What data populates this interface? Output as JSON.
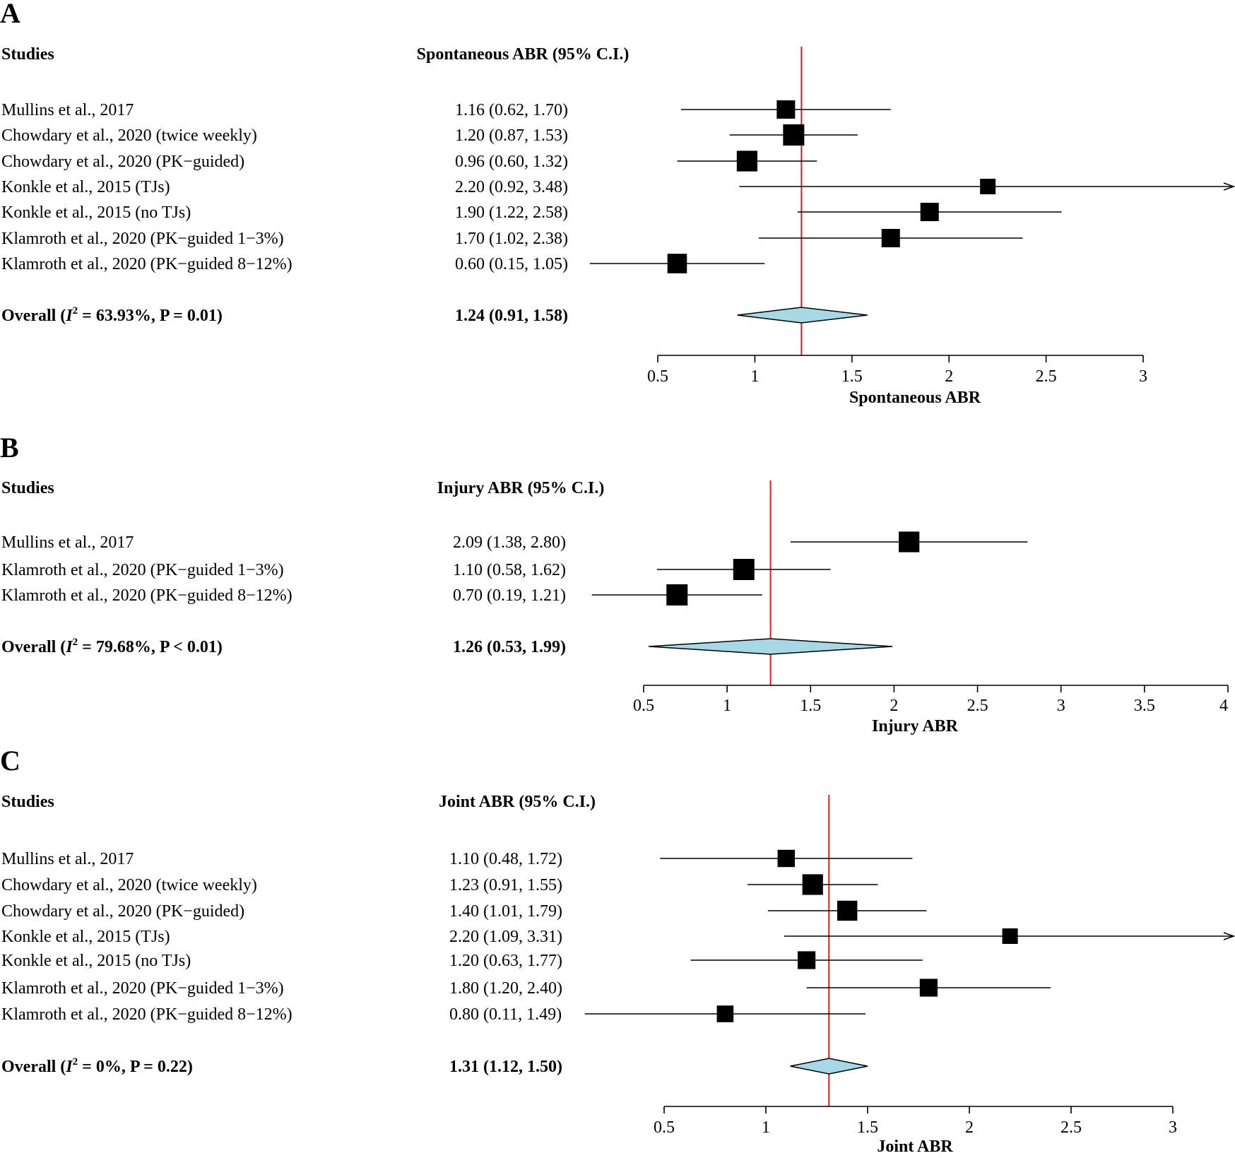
{
  "colors": {
    "reference_line": "#e41a1c",
    "diamond_fill": "#a6d8e6",
    "marker": "#000000"
  },
  "chart_data": [
    {
      "type": "forest",
      "panel_label": "A",
      "studies_header": "Studies",
      "estimate_header": "Spontaneous ABR (95% C.I.)",
      "xlabel": "Spontaneous ABR",
      "xlim": [
        0.5,
        3
      ],
      "xticks": [
        0.5,
        1,
        1.5,
        2,
        2.5,
        3
      ],
      "xtick_labels": [
        "0.5",
        "1",
        "1.5",
        "2",
        "2.5",
        "3"
      ],
      "reference_value": 1.24,
      "studies": [
        {
          "name": "Mullins et al., 2017",
          "text": "1.16 (0.62, 1.70)",
          "est": 1.16,
          "lo": 0.62,
          "hi": 1.7,
          "weight": 0.75
        },
        {
          "name": "Chowdary et al., 2020 (twice weekly)",
          "text": "1.20 (0.87, 1.53)",
          "est": 1.2,
          "lo": 0.87,
          "hi": 1.53,
          "weight": 1.0
        },
        {
          "name": "Chowdary  et  al.,  2020  (PK−guided)",
          "text": "0.96 (0.60, 1.32)",
          "est": 0.96,
          "lo": 0.6,
          "hi": 1.32,
          "weight": 0.95
        },
        {
          "name": "Konkle et al., 2015 (TJs)",
          "text": "2.20 (0.92, 3.48)",
          "est": 2.2,
          "lo": 0.92,
          "hi": 3.48,
          "weight": 0.5
        },
        {
          "name": "Konkle et al., 2015 (no TJs)",
          "text": "1.90 (1.22, 2.58)",
          "est": 1.9,
          "lo": 1.22,
          "hi": 2.58,
          "weight": 0.75
        },
        {
          "name": "Klamroth et al., 2020 (PK−guided 1−3%)",
          "text": "1.70 (1.02, 2.38)",
          "est": 1.7,
          "lo": 1.02,
          "hi": 2.38,
          "weight": 0.75
        },
        {
          "name": "Klamroth et al., 2020 (PK−guided 8−12%)",
          "text": "0.60 (0.15, 1.05)",
          "est": 0.6,
          "lo": 0.15,
          "hi": 1.05,
          "weight": 0.85
        }
      ],
      "overall": {
        "label_prefix": "Overall (",
        "i2": "I",
        "sup": "2",
        "label_suffix": " = 63.93%, P = 0.01)",
        "text": "1.24 (0.91, 1.58)",
        "est": 1.24,
        "lo": 0.91,
        "hi": 1.58
      }
    },
    {
      "type": "forest",
      "panel_label": "B",
      "studies_header": "Studies",
      "estimate_header": "Injury ABR (95% C.I.)",
      "xlabel": "Injury ABR",
      "xlim": [
        0.5,
        4
      ],
      "xticks": [
        0.5,
        1,
        1.5,
        2,
        2.5,
        3,
        3.5,
        4
      ],
      "xtick_labels": [
        "0.5",
        "1",
        "1.5",
        "2",
        "2.5",
        "3",
        "3.5",
        "4"
      ],
      "reference_value": 1.26,
      "studies": [
        {
          "name": "Mullins et al., 2017",
          "text": "2.09 (1.38, 2.80)",
          "est": 2.09,
          "lo": 1.38,
          "hi": 2.8,
          "weight": 0.95
        },
        {
          "name": "Klamroth et al., 2020 (PK−guided 1−3%)",
          "text": "1.10 (0.58, 1.62)",
          "est": 1.1,
          "lo": 0.58,
          "hi": 1.62,
          "weight": 1.0
        },
        {
          "name": "Klamroth et al., 2020 (PK−guided 8−12%)",
          "text": "0.70 (0.19, 1.21)",
          "est": 0.7,
          "lo": 0.19,
          "hi": 1.21,
          "weight": 1.0
        }
      ],
      "overall": {
        "label_prefix": "Overall (",
        "i2": "I",
        "sup": "2",
        "label_suffix": " = 79.68%, P < 0.01)",
        "text": "1.26 (0.53, 1.99)",
        "est": 1.26,
        "lo": 0.53,
        "hi": 1.99
      }
    },
    {
      "type": "forest",
      "panel_label": "C",
      "studies_header": "Studies",
      "estimate_header": "Joint ABR (95% C.I.)",
      "xlabel": "Joint ABR",
      "xlim": [
        0.5,
        3
      ],
      "xticks": [
        0.5,
        1,
        1.5,
        2,
        2.5,
        3
      ],
      "xtick_labels": [
        "0.5",
        "1",
        "1.5",
        "2",
        "2.5",
        "3"
      ],
      "reference_value": 1.31,
      "studies": [
        {
          "name": "Mullins et al., 2017",
          "text": "1.10 (0.48, 1.72)",
          "est": 1.1,
          "lo": 0.48,
          "hi": 1.72,
          "weight": 0.65
        },
        {
          "name": "Chowdary et al., 2020 (twice weekly)",
          "text": "1.23 (0.91, 1.55)",
          "est": 1.23,
          "lo": 0.91,
          "hi": 1.55,
          "weight": 0.95
        },
        {
          "name": "Chowdary et al., 2020 (PK−guided)",
          "text": "1.40 (1.01, 1.79)",
          "est": 1.4,
          "lo": 1.01,
          "hi": 1.79,
          "weight": 0.9
        },
        {
          "name": "Konkle et al., 2015 (TJs)",
          "text": "2.20 (1.09, 3.31)",
          "est": 2.2,
          "lo": 1.09,
          "hi": 3.31,
          "weight": 0.5
        },
        {
          "name": "Konkle et al., 2015 (no TJs)",
          "text": "1.20 (0.63, 1.77)",
          "est": 1.2,
          "lo": 0.63,
          "hi": 1.77,
          "weight": 0.7
        },
        {
          "name": "Klamroth et al., 2020 (PK−guided 1−3%)",
          "text": "1.80 (1.20, 2.40)",
          "est": 1.8,
          "lo": 1.2,
          "hi": 2.4,
          "weight": 0.7
        },
        {
          "name": "Klamroth et al., 2020 (PK−guided 8−12%)",
          "text": "0.80 (0.11, 1.49)",
          "est": 0.8,
          "lo": 0.11,
          "hi": 1.49,
          "weight": 0.6
        }
      ],
      "overall": {
        "label_prefix": "Overall (",
        "i2": "I",
        "sup": "2",
        "label_suffix": " = 0%, P = 0.22)",
        "text": "1.31 (1.12, 1.50)",
        "est": 1.31,
        "lo": 1.12,
        "hi": 1.5
      }
    }
  ]
}
